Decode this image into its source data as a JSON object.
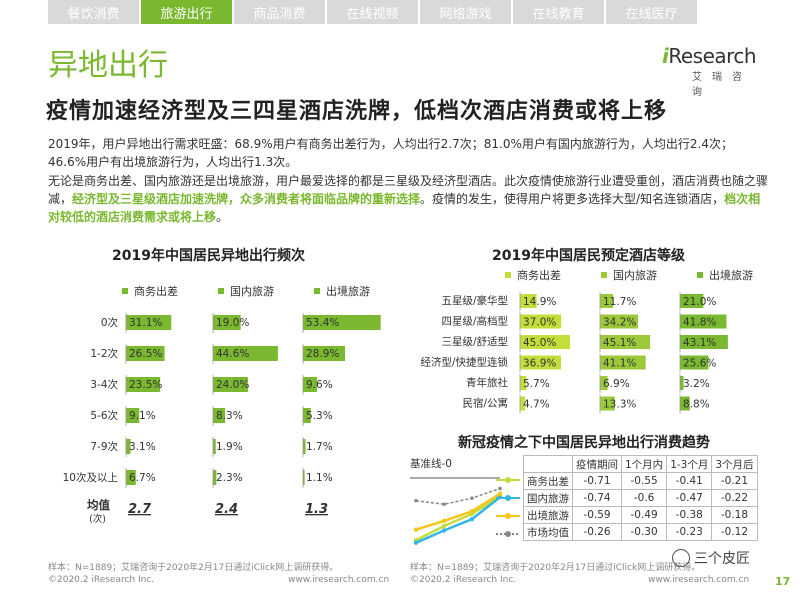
{
  "tabs": [
    "餐饮消费",
    "旅游出行",
    "商品消费",
    "在线视频",
    "网络游戏",
    "在线教育",
    "在线医疗"
  ],
  "active_tab": 1,
  "section_title": "异地出行",
  "logo": {
    "brand_i": "i",
    "brand_rest": "Research",
    "sub": "艾瑞咨询"
  },
  "headline": "疫情加速经济型及三四星酒店洗牌，低档次酒店消费或将上移",
  "para1": "2019年，用户异地出行需求旺盛：68.9%用户有商务出差行为，人均出行2.7次；81.0%用户有国内旅游行为，人均出行2.4次；46.6%用户有出境旅游行为，人均出行1.3次。",
  "para2": {
    "plain1": "无论是商务出差、国内旅游还是出境旅游，用户最爱选择的都是三星级及经济型酒店。此次疫情使旅游行业遭受重创，酒店消费也随之骤减，",
    "hl1": "经济型及三星级酒店加速洗牌，众多消费者将面临品牌的重新选择",
    "plain2": "。疫情的发生，使得用户将更多选择大型/知名连锁酒店，",
    "hl2": "档次相对较低的酒店消费需求或将上移",
    "plain3": "。"
  },
  "colors": {
    "green_dark": "#7ab830",
    "green_mid": "#9cc93a",
    "green_light": "#c5dd3b",
    "blue": "#33b5e5",
    "yellow": "#f5c518",
    "gray": "#888888"
  },
  "chart1": {
    "title": "2019年中国居民异地出行频次",
    "legend": [
      "商务出差",
      "国内旅游",
      "出境旅游"
    ],
    "categories": [
      "0次",
      "1-2次",
      "3-4次",
      "5-6次",
      "7-9次",
      "10次及以上"
    ],
    "series": [
      {
        "name": "商务出差",
        "values": [
          31.1,
          26.5,
          23.5,
          9.1,
          3.1,
          6.7
        ],
        "labels": [
          "31.1%",
          "26.5%",
          "23.5%",
          "9.1%",
          "3.1%",
          "6.7%"
        ]
      },
      {
        "name": "国内旅游",
        "values": [
          19.0,
          44.6,
          24.0,
          8.3,
          1.9,
          2.3
        ],
        "labels": [
          "19.0%",
          "44.6%",
          "24.0%",
          "8.3%",
          "1.9%",
          "2.3%"
        ]
      },
      {
        "name": "出境旅游",
        "values": [
          53.4,
          28.9,
          9.6,
          5.3,
          1.7,
          1.1
        ],
        "labels": [
          "53.4%",
          "28.9%",
          "9.6%",
          "5.3%",
          "1.7%",
          "1.1%"
        ]
      }
    ],
    "avg_label": "均值",
    "avg_unit": "(次)",
    "averages": [
      "2.7",
      "2.4",
      "1.3"
    ],
    "footnote": "样本：N=1889；艾瑞咨询于2020年2月17日通过iClick网上调研获得。"
  },
  "chart2": {
    "title": "2019年中国居民预定酒店等级",
    "legend": [
      "商务出差",
      "国内旅游",
      "出境旅游"
    ],
    "categories": [
      "五星级/豪华型",
      "四星级/高档型",
      "三星级/舒适型",
      "经济型/快捷型连锁",
      "青年旅社",
      "民宿/公寓"
    ],
    "series": [
      {
        "name": "商务出差",
        "values": [
          14.9,
          37.0,
          45.0,
          36.9,
          5.7,
          4.7
        ],
        "labels": [
          "14.9%",
          "37.0%",
          "45.0%",
          "36.9%",
          "5.7%",
          "4.7%"
        ]
      },
      {
        "name": "国内旅游",
        "values": [
          11.7,
          34.2,
          45.1,
          41.1,
          6.9,
          13.3
        ],
        "labels": [
          "11.7%",
          "34.2%",
          "45.1%",
          "41.1%",
          "6.9%",
          "13.3%"
        ]
      },
      {
        "name": "出境旅游",
        "values": [
          21.0,
          41.8,
          43.1,
          25.6,
          3.2,
          8.8
        ],
        "labels": [
          "21.0%",
          "41.8%",
          "43.1%",
          "25.6%",
          "3.2%",
          "8.8%"
        ]
      }
    ]
  },
  "chart3": {
    "title": "新冠疫情之下中国居民异地出行消费趋势",
    "baseline": "基准线-0",
    "header": [
      "疫情期间",
      "1个月内",
      "1-3个月",
      "3个月后"
    ],
    "rows": [
      {
        "name": "商务出差",
        "values": [
          "-0.71",
          "-0.55",
          "-0.41",
          "-0.21"
        ],
        "nums": [
          -0.71,
          -0.55,
          -0.41,
          -0.21
        ]
      },
      {
        "name": "国内旅游",
        "values": [
          "-0.74",
          "-0.6",
          "-0.47",
          "-0.22"
        ],
        "nums": [
          -0.74,
          -0.6,
          -0.47,
          -0.22
        ]
      },
      {
        "name": "出境旅游",
        "values": [
          "-0.59",
          "-0.49",
          "-0.38",
          "-0.18"
        ],
        "nums": [
          -0.59,
          -0.49,
          -0.38,
          -0.18
        ]
      },
      {
        "name": "市场均值",
        "values": [
          "-0.26",
          "-0.30",
          "-0.23",
          "-0.12"
        ],
        "nums": [
          -0.26,
          -0.3,
          -0.23,
          -0.12
        ]
      }
    ],
    "footnote": "样本：N=1889；艾瑞咨询于2020年2月17日通过iClick网上调研获得。"
  },
  "footer": {
    "copyright": "©2020.2 iResearch Inc.",
    "url": "www.iresearch.com.cn",
    "page": "17",
    "watermark": "三个皮匠"
  }
}
